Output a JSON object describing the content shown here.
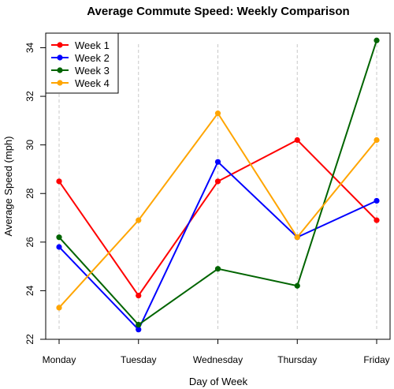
{
  "chart_data": {
    "type": "line",
    "title": "Average Commute Speed: Weekly Comparison",
    "xlabel": "Day of Week",
    "ylabel": "Average Speed (mph)",
    "categories": [
      "Monday",
      "Tuesday",
      "Wednesday",
      "Thursday",
      "Friday"
    ],
    "ylim": [
      22,
      34.6
    ],
    "yticks": [
      22,
      24,
      26,
      28,
      30,
      32,
      34
    ],
    "grid": "vertical dashed",
    "legend_position": "top-left",
    "series": [
      {
        "name": "Week 1",
        "color": "#ff0000",
        "values": [
          28.5,
          23.8,
          28.5,
          30.2,
          26.9
        ]
      },
      {
        "name": "Week 2",
        "color": "#0000ff",
        "values": [
          25.8,
          22.4,
          29.3,
          26.2,
          27.7
        ]
      },
      {
        "name": "Week 3",
        "color": "#006400",
        "values": [
          26.2,
          22.6,
          24.9,
          24.2,
          34.3
        ]
      },
      {
        "name": "Week 4",
        "color": "#ffa500",
        "values": [
          23.3,
          26.9,
          31.3,
          26.2,
          30.2
        ]
      }
    ]
  }
}
